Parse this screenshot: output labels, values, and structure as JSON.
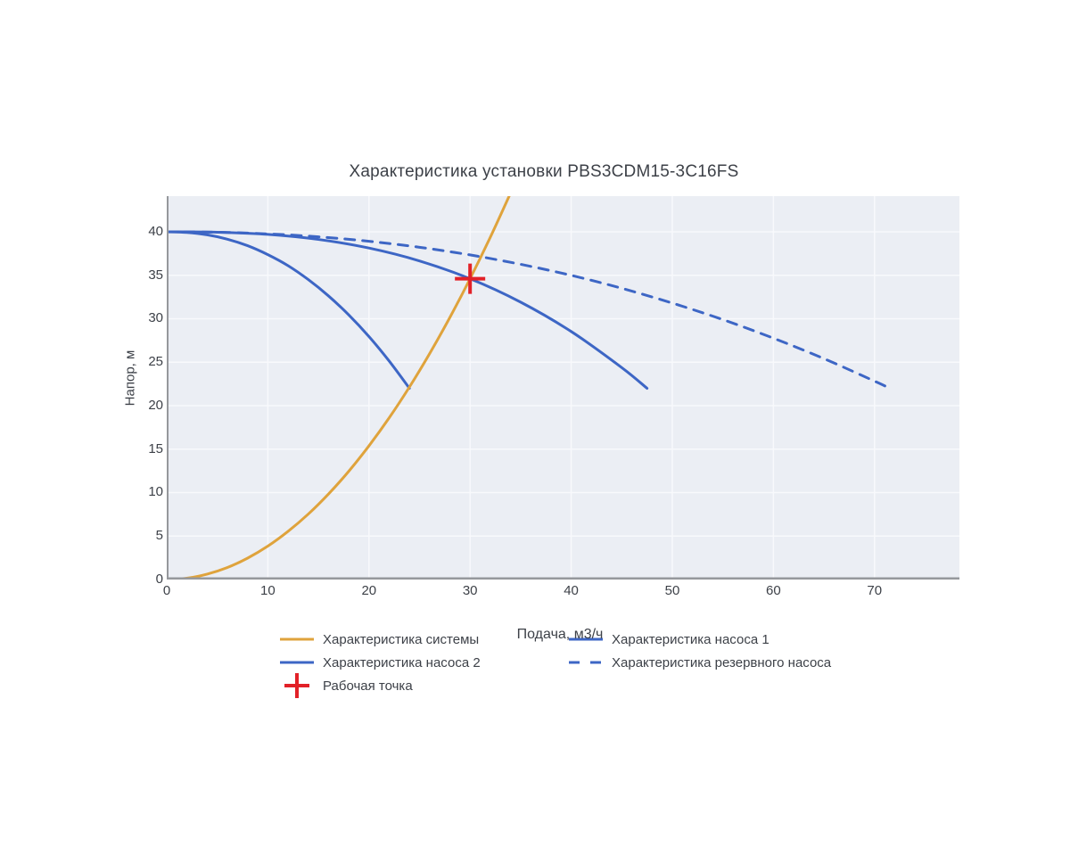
{
  "chart_data": {
    "type": "line",
    "title": "Характеристика установки PBS3CDM15-3C16FS",
    "xlabel": "Подача, м3/ч",
    "ylabel": "Напор, м",
    "xlim": [
      0,
      78.4
    ],
    "ylim": [
      0,
      44.1
    ],
    "x_ticks": [
      0,
      10,
      20,
      30,
      40,
      50,
      60,
      70
    ],
    "y_ticks": [
      0,
      5,
      10,
      15,
      20,
      25,
      30,
      35,
      40
    ],
    "grid": true,
    "legend_position": "bottom",
    "plot_bg": "#ebeef4",
    "grid_color": "#f8f9fc",
    "axis_line_color": "#96989c",
    "text_color": "#3d4148",
    "operating_point": {
      "flow": 30,
      "head": 34.6
    },
    "series": [
      {
        "id": "system",
        "name": "Характеристика системы",
        "color": "#dfa33c",
        "style": "solid",
        "points": [
          [
            0,
            0
          ],
          [
            2,
            0.15
          ],
          [
            4,
            0.62
          ],
          [
            6,
            1.38
          ],
          [
            8,
            2.46
          ],
          [
            10,
            3.84
          ],
          [
            12,
            5.54
          ],
          [
            14,
            7.53
          ],
          [
            16,
            9.84
          ],
          [
            18,
            12.45
          ],
          [
            20,
            15.38
          ],
          [
            22,
            18.6
          ],
          [
            24,
            22.14
          ],
          [
            26,
            25.99
          ],
          [
            28,
            30.14
          ],
          [
            30,
            34.6
          ],
          [
            32,
            39.37
          ],
          [
            34,
            44.45
          ],
          [
            35,
            47.1
          ]
        ]
      },
      {
        "id": "pump1",
        "name": "Характеристика насоса 1",
        "color": "#3d66c5",
        "style": "solid",
        "points": [
          [
            0,
            40
          ],
          [
            5,
            39.95
          ],
          [
            10,
            39.7
          ],
          [
            15,
            39.12
          ],
          [
            20,
            38.13
          ],
          [
            25,
            36.65
          ],
          [
            30,
            34.6
          ],
          [
            35,
            31.91
          ],
          [
            40,
            28.53
          ],
          [
            45,
            24.38
          ],
          [
            47.5,
            22
          ]
        ]
      },
      {
        "id": "pump2",
        "name": "Характеристика насоса 2",
        "color": "#3d66c5",
        "style": "solid",
        "points": [
          [
            0,
            40
          ],
          [
            2,
            39.92
          ],
          [
            4,
            39.65
          ],
          [
            6,
            39.15
          ],
          [
            8,
            38.4
          ],
          [
            10,
            37.37
          ],
          [
            12,
            36.1
          ],
          [
            14,
            34.5
          ],
          [
            16,
            32.62
          ],
          [
            18,
            30.44
          ],
          [
            20,
            27.95
          ],
          [
            22,
            25.13
          ],
          [
            24,
            22
          ]
        ]
      },
      {
        "id": "reserve",
        "name": "Характеристика резервного насоса",
        "color": "#3d66c5",
        "style": "dashed",
        "points": [
          [
            0,
            40
          ],
          [
            5,
            39.95
          ],
          [
            10,
            39.76
          ],
          [
            15,
            39.42
          ],
          [
            20,
            38.91
          ],
          [
            25,
            38.22
          ],
          [
            30,
            37.34
          ],
          [
            35,
            36.26
          ],
          [
            40,
            34.99
          ],
          [
            45,
            33.5
          ],
          [
            50,
            31.8
          ],
          [
            55,
            29.9
          ],
          [
            60,
            27.76
          ],
          [
            65,
            25.41
          ],
          [
            70,
            22.82
          ],
          [
            71.5,
            22
          ]
        ]
      },
      {
        "id": "operating-point",
        "name": "Рабочая точка",
        "color": "#e22128",
        "style": "cross",
        "points": [
          [
            30,
            34.6
          ]
        ]
      }
    ],
    "legend_columns": [
      [
        "system",
        "pump2",
        "operating-point"
      ],
      [
        "pump1",
        "reserve"
      ]
    ]
  }
}
